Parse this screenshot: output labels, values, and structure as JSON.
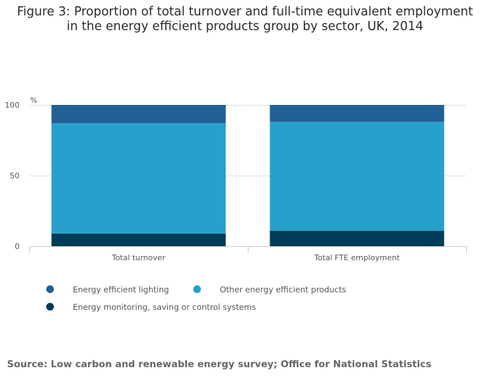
{
  "title": {
    "line1": "Figure 3: Proportion of total turnover and full-time equivalent employment",
    "line2": "in the energy efficient products group by sector, UK, 2014"
  },
  "chart_data": {
    "type": "bar",
    "stacked": true,
    "title": "Figure 3: Proportion of total turnover and full-time equivalent employment in the energy efficient products group by sector, UK, 2014",
    "ylabel": "%",
    "xlabel": "",
    "ylim": [
      0,
      100
    ],
    "yticks": [
      0,
      50,
      100
    ],
    "categories": [
      "Total turnover",
      "Total FTE employment"
    ],
    "series": [
      {
        "name": "Energy monitoring, saving or control systems",
        "color": "#003c57",
        "values": [
          9,
          11
        ]
      },
      {
        "name": "Other energy efficient products",
        "color": "#27a0cc",
        "values": [
          78,
          77
        ]
      },
      {
        "name": "Energy efficient lighting",
        "color": "#206095",
        "values": [
          13,
          12
        ]
      }
    ],
    "legend": {
      "placement": "bottom-left",
      "order": [
        "Energy efficient lighting",
        "Other energy efficient products",
        "Energy monitoring, saving or control systems"
      ]
    },
    "grid": true
  },
  "source": "Source: Low carbon and renewable energy survey; Office for National Statistics"
}
